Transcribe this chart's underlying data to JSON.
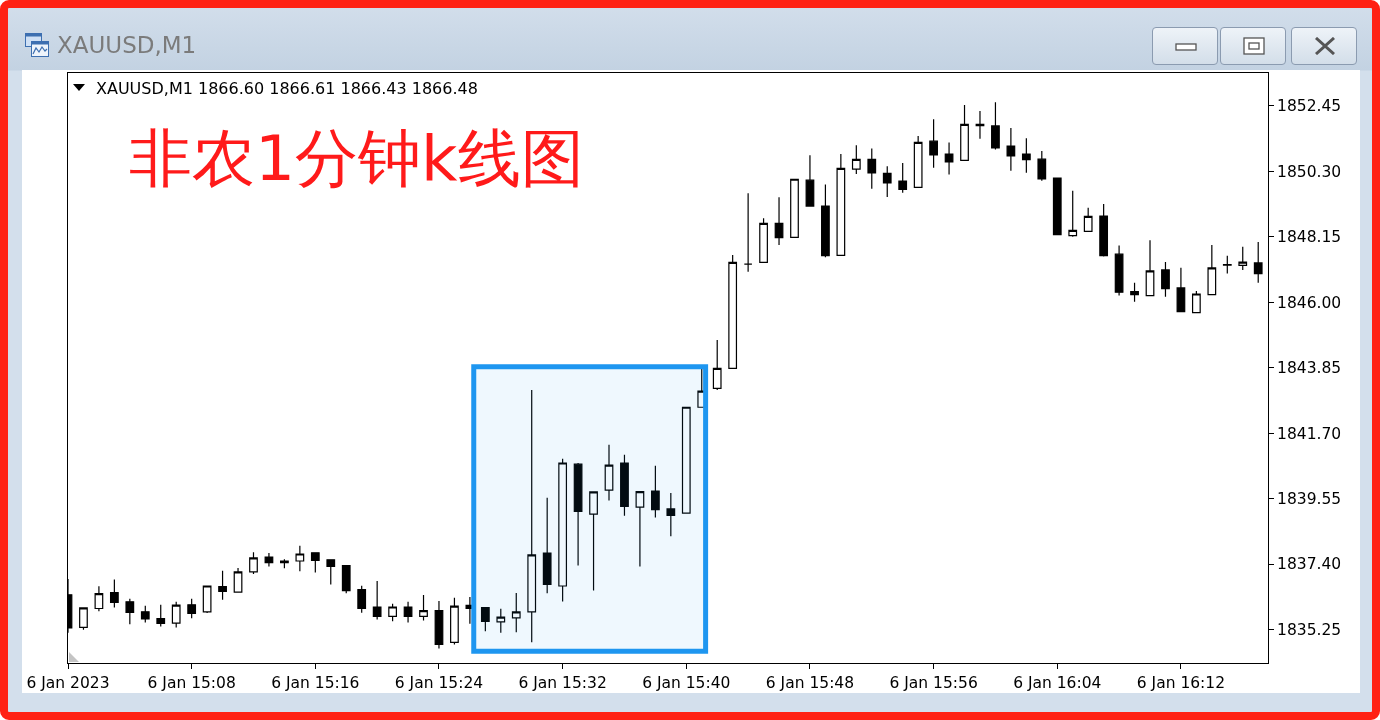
{
  "chart_data": {
    "type": "candlestick",
    "title": "非农1分钟k线图",
    "annotations": [
      "XAUUSD,M1",
      "XAUUSD,M1 1866.60 1866.61 1866.43 1866.48"
    ],
    "x": [
      "2023-01-06T15:00",
      "2023-01-06T15:01",
      "2023-01-06T15:02",
      "2023-01-06T15:03",
      "2023-01-06T15:04",
      "2023-01-06T15:05",
      "2023-01-06T15:06",
      "2023-01-06T15:07",
      "2023-01-06T15:08",
      "2023-01-06T15:09",
      "2023-01-06T15:10",
      "2023-01-06T15:11",
      "2023-01-06T15:12",
      "2023-01-06T15:13",
      "2023-01-06T15:14",
      "2023-01-06T15:15",
      "2023-01-06T15:16",
      "2023-01-06T15:17",
      "2023-01-06T15:18",
      "2023-01-06T15:19",
      "2023-01-06T15:20",
      "2023-01-06T15:21",
      "2023-01-06T15:22",
      "2023-01-06T15:23",
      "2023-01-06T15:24",
      "2023-01-06T15:25",
      "2023-01-06T15:26",
      "2023-01-06T15:27",
      "2023-01-06T15:28",
      "2023-01-06T15:29",
      "2023-01-06T15:30",
      "2023-01-06T15:31",
      "2023-01-06T15:32",
      "2023-01-06T15:33",
      "2023-01-06T15:34",
      "2023-01-06T15:35",
      "2023-01-06T15:36",
      "2023-01-06T15:37",
      "2023-01-06T15:38",
      "2023-01-06T15:39",
      "2023-01-06T15:40",
      "2023-01-06T15:41",
      "2023-01-06T15:42",
      "2023-01-06T15:43",
      "2023-01-06T15:44",
      "2023-01-06T15:45",
      "2023-01-06T15:46",
      "2023-01-06T15:47",
      "2023-01-06T15:48",
      "2023-01-06T15:49",
      "2023-01-06T15:50",
      "2023-01-06T15:51",
      "2023-01-06T15:52",
      "2023-01-06T15:53",
      "2023-01-06T15:54",
      "2023-01-06T15:55",
      "2023-01-06T15:56",
      "2023-01-06T15:57",
      "2023-01-06T15:58",
      "2023-01-06T15:59",
      "2023-01-06T16:00",
      "2023-01-06T16:01",
      "2023-01-06T16:02",
      "2023-01-06T16:03",
      "2023-01-06T16:04",
      "2023-01-06T16:05",
      "2023-01-06T16:06",
      "2023-01-06T16:07",
      "2023-01-06T16:08",
      "2023-01-06T16:09",
      "2023-01-06T16:10",
      "2023-01-06T16:11",
      "2023-01-06T16:12",
      "2023-01-06T16:13",
      "2023-01-06T16:14",
      "2023-01-06T16:15",
      "2023-01-06T16:16",
      "2023-01-06T16:17"
    ],
    "ohlc": [
      [
        1836.39,
        1836.91,
        1835.14,
        1835.3
      ],
      [
        1835.32,
        1835.96,
        1835.24,
        1835.96
      ],
      [
        1835.94,
        1836.67,
        1835.85,
        1836.43
      ],
      [
        1836.46,
        1836.89,
        1835.97,
        1836.14
      ],
      [
        1836.16,
        1836.26,
        1835.42,
        1835.81
      ],
      [
        1835.83,
        1836.03,
        1835.48,
        1835.6
      ],
      [
        1835.61,
        1836.06,
        1835.35,
        1835.45
      ],
      [
        1835.46,
        1836.16,
        1835.32,
        1836.05
      ],
      [
        1836.06,
        1836.26,
        1835.62,
        1835.78
      ],
      [
        1835.83,
        1836.68,
        1835.79,
        1836.68
      ],
      [
        1836.66,
        1837.18,
        1836.23,
        1836.5
      ],
      [
        1836.48,
        1837.27,
        1836.48,
        1837.14
      ],
      [
        1837.14,
        1837.79,
        1837.07,
        1837.6
      ],
      [
        1837.63,
        1837.76,
        1837.32,
        1837.45
      ],
      [
        1837.5,
        1837.56,
        1837.26,
        1837.45
      ],
      [
        1837.5,
        1838.0,
        1837.16,
        1837.73
      ],
      [
        1837.77,
        1837.77,
        1837.12,
        1837.52
      ],
      [
        1837.54,
        1837.56,
        1836.73,
        1837.32
      ],
      [
        1837.35,
        1837.35,
        1836.44,
        1836.53
      ],
      [
        1836.56,
        1836.69,
        1835.8,
        1835.94
      ],
      [
        1835.99,
        1836.84,
        1835.58,
        1835.68
      ],
      [
        1835.68,
        1836.1,
        1835.52,
        1835.99
      ],
      [
        1835.99,
        1836.16,
        1835.48,
        1835.68
      ],
      [
        1835.68,
        1836.38,
        1835.55,
        1835.87
      ],
      [
        1835.87,
        1836.19,
        1834.63,
        1834.76
      ],
      [
        1834.83,
        1836.29,
        1834.76,
        1836.02
      ],
      [
        1836.04,
        1836.32,
        1835.44,
        1835.94
      ],
      [
        1835.97,
        1835.99,
        1835.19,
        1835.52
      ],
      [
        1835.5,
        1835.93,
        1835.14,
        1835.66
      ],
      [
        1835.63,
        1836.45,
        1835.16,
        1835.83
      ],
      [
        1835.83,
        1843.12,
        1834.83,
        1837.7
      ],
      [
        1837.76,
        1839.58,
        1836.44,
        1836.73
      ],
      [
        1836.68,
        1840.86,
        1836.17,
        1840.72
      ],
      [
        1840.68,
        1840.72,
        1837.35,
        1839.13
      ],
      [
        1839.04,
        1839.77,
        1836.53,
        1839.77
      ],
      [
        1839.83,
        1841.32,
        1839.49,
        1840.65
      ],
      [
        1840.72,
        1840.99,
        1838.99,
        1839.29
      ],
      [
        1839.27,
        1839.78,
        1837.32,
        1839.78
      ],
      [
        1839.8,
        1840.63,
        1838.93,
        1839.19
      ],
      [
        1839.21,
        1839.73,
        1838.31,
        1839.0
      ],
      [
        1839.07,
        1842.55,
        1839.07,
        1842.55
      ],
      [
        1842.55,
        1843.88,
        1842.55,
        1843.08
      ],
      [
        1843.17,
        1844.76,
        1843.12,
        1843.83
      ],
      [
        1843.83,
        1847.55,
        1843.83,
        1847.31
      ],
      [
        1847.25,
        1849.58,
        1847.0,
        1847.25
      ],
      [
        1847.31,
        1848.76,
        1847.31,
        1848.59
      ],
      [
        1848.59,
        1849.45,
        1847.88,
        1848.12
      ],
      [
        1848.13,
        1850.04,
        1848.13,
        1850.04
      ],
      [
        1850.01,
        1850.83,
        1849.14,
        1849.16
      ],
      [
        1849.16,
        1849.87,
        1847.48,
        1847.53
      ],
      [
        1847.54,
        1850.87,
        1847.54,
        1850.4
      ],
      [
        1850.37,
        1851.16,
        1850.21,
        1850.69
      ],
      [
        1850.69,
        1851.05,
        1849.73,
        1850.25
      ],
      [
        1850.23,
        1850.47,
        1849.46,
        1849.92
      ],
      [
        1849.98,
        1850.57,
        1849.6,
        1849.71
      ],
      [
        1849.77,
        1851.46,
        1849.77,
        1851.25
      ],
      [
        1851.29,
        1852.01,
        1850.42,
        1850.84
      ],
      [
        1850.87,
        1851.25,
        1850.2,
        1850.61
      ],
      [
        1850.66,
        1852.48,
        1850.66,
        1851.84
      ],
      [
        1851.8,
        1852.28,
        1851.37,
        1851.84
      ],
      [
        1851.79,
        1852.57,
        1851.02,
        1851.07
      ],
      [
        1851.13,
        1851.72,
        1850.32,
        1850.81
      ],
      [
        1850.87,
        1851.39,
        1850.25,
        1850.68
      ],
      [
        1850.7,
        1850.97,
        1849.99,
        1850.05
      ],
      [
        1850.08,
        1850.1,
        1848.22,
        1848.22
      ],
      [
        1848.19,
        1849.66,
        1848.15,
        1848.36
      ],
      [
        1848.33,
        1849.1,
        1848.33,
        1848.82
      ],
      [
        1848.83,
        1849.23,
        1847.5,
        1847.53
      ],
      [
        1847.58,
        1847.86,
        1846.22,
        1846.33
      ],
      [
        1846.35,
        1846.64,
        1846.02,
        1846.25
      ],
      [
        1846.22,
        1848.04,
        1846.22,
        1847.03
      ],
      [
        1847.06,
        1847.32,
        1846.18,
        1846.45
      ],
      [
        1846.47,
        1847.13,
        1845.68,
        1845.69
      ],
      [
        1845.66,
        1846.37,
        1845.64,
        1846.27
      ],
      [
        1846.25,
        1847.88,
        1846.23,
        1847.13
      ],
      [
        1847.24,
        1847.53,
        1846.94,
        1847.22
      ],
      [
        1847.21,
        1847.82,
        1847.06,
        1847.32
      ],
      [
        1847.29,
        1847.98,
        1846.64,
        1846.94
      ]
    ],
    "xlim": [
      "2023-01-06T15:00",
      "2023-01-06T16:17:38"
    ],
    "xticks": [
      {
        "value": "2023-01-06T15:00",
        "label": "6 Jan 2023"
      },
      {
        "value": "2023-01-06T15:08",
        "label": "6 Jan 15:08"
      },
      {
        "value": "2023-01-06T15:16",
        "label": "6 Jan 15:16"
      },
      {
        "value": "2023-01-06T15:24",
        "label": "6 Jan 15:24"
      },
      {
        "value": "2023-01-06T15:32",
        "label": "6 Jan 15:32"
      },
      {
        "value": "2023-01-06T15:40",
        "label": "6 Jan 15:40"
      },
      {
        "value": "2023-01-06T15:48",
        "label": "6 Jan 15:48"
      },
      {
        "value": "2023-01-06T15:56",
        "label": "6 Jan 15:56"
      },
      {
        "value": "2023-01-06T16:04",
        "label": "6 Jan 16:04"
      },
      {
        "value": "2023-01-06T16:12",
        "label": "6 Jan 16:12"
      }
    ],
    "ylim": [
      1834.15,
      1853.53
    ],
    "yticks": [
      1835.25,
      {
        "value": 1837.4,
        "label": "1837.40"
      },
      1839.55,
      {
        "value": 1841.7,
        "label": "1841.70"
      },
      1843.85,
      {
        "value": 1846,
        "label": "1846.00"
      },
      1848.15,
      {
        "value": 1850.3,
        "label": "1850.30"
      },
      1852.45
    ],
    "bands": [
      {
        "axis": "x",
        "from": "2023-01-06T15:26:15",
        "to": "2023-01-06T15:41:15",
        "color": "#1e96f0"
      }
    ]
  }
}
